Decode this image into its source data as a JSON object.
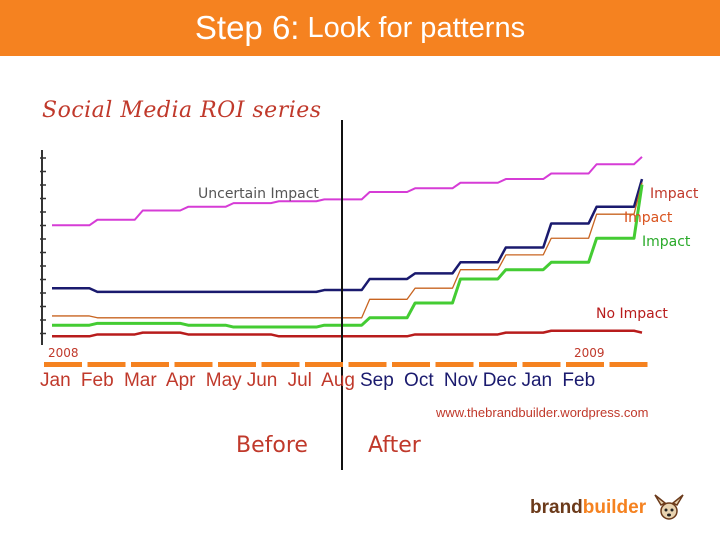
{
  "header": {
    "title_step": "Step 6:",
    "title_rest": "Look for patterns"
  },
  "series_title": "Social Media ROI series",
  "chart_data": {
    "type": "line",
    "x_labels_year": [
      "2008",
      "2009"
    ],
    "x_labels_months": [
      "Jan",
      "Feb",
      "Mar",
      "Apr",
      "May",
      "Jun",
      "Jul",
      "Aug",
      "Sep",
      "Oct",
      "Nov",
      "Dec",
      "Jan",
      "Feb"
    ],
    "annotations": {
      "uncertain": "Uncertain Impact",
      "impact1": "Impact",
      "impact2": "Impact",
      "impact3": "Impact",
      "no_impact": "No Impact"
    },
    "series": [
      {
        "color": "#d63cd6",
        "values": [
          0.62,
          0.65,
          0.7,
          0.72,
          0.74,
          0.75,
          0.76,
          0.8,
          0.82,
          0.85,
          0.87,
          0.9,
          0.95,
          0.99
        ]
      },
      {
        "color": "#1a1a6e",
        "values": [
          0.28,
          0.26,
          0.26,
          0.26,
          0.26,
          0.26,
          0.27,
          0.33,
          0.36,
          0.42,
          0.5,
          0.63,
          0.72,
          0.87
        ]
      },
      {
        "color": "#c86420",
        "values": [
          0.13,
          0.12,
          0.12,
          0.12,
          0.12,
          0.12,
          0.12,
          0.22,
          0.28,
          0.38,
          0.46,
          0.55,
          0.68,
          0.85
        ]
      },
      {
        "color": "#44cc33",
        "values": [
          0.08,
          0.09,
          0.09,
          0.08,
          0.07,
          0.07,
          0.08,
          0.12,
          0.2,
          0.33,
          0.38,
          0.42,
          0.55,
          0.84
        ]
      },
      {
        "color": "#b81c1c",
        "values": [
          0.02,
          0.03,
          0.04,
          0.03,
          0.03,
          0.02,
          0.02,
          0.02,
          0.03,
          0.03,
          0.04,
          0.05,
          0.05,
          0.04
        ]
      }
    ]
  },
  "phases": {
    "before": "Before",
    "after": "After"
  },
  "url": "www.thebrandbuilder.wordpress.com",
  "logo": {
    "brand": "brand",
    "builder": "builder"
  },
  "colors": {
    "title_bar": "#f58220",
    "accent_red": "#c0392b",
    "month_2008": "#c0392b",
    "month_2009": "#1a1a6e",
    "month_last": "#2e7d32"
  }
}
